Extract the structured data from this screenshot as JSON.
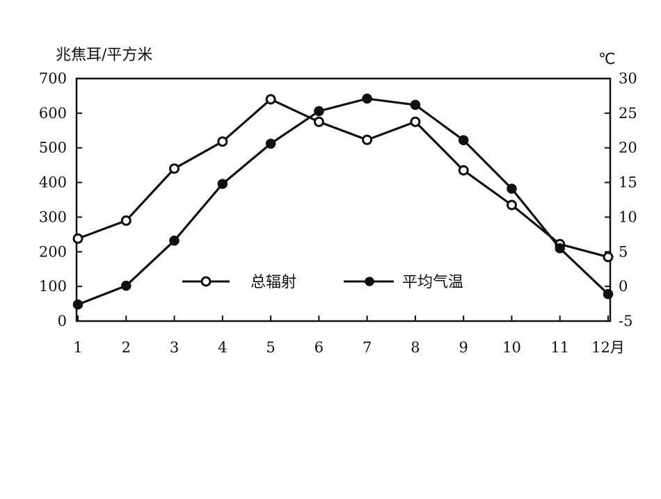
{
  "chart_data": {
    "type": "line",
    "categories": [
      "1",
      "2",
      "3",
      "4",
      "5",
      "6",
      "7",
      "8",
      "9",
      "10",
      "11",
      "12月"
    ],
    "y_left_label": "兆焦耳/平方米",
    "y_right_label": "℃",
    "y_left_ticks": [
      "700",
      "600",
      "500",
      "400",
      "300",
      "200",
      "100",
      "0"
    ],
    "y_right_ticks": [
      "30",
      "25",
      "20",
      "15",
      "10",
      "5",
      "0",
      "-5"
    ],
    "ylim_left": [
      0,
      700
    ],
    "ylim_right": [
      -5,
      30
    ],
    "grid": false,
    "legend_position": "bottom-center inside plot",
    "series": [
      {
        "name": "总辐射",
        "axis": "left",
        "marker": "open-circle",
        "values": [
          238,
          290,
          440,
          518,
          640,
          575,
          523,
          575,
          435,
          335,
          222,
          185
        ]
      },
      {
        "name": "平均气温",
        "axis": "right",
        "marker": "filled-circle",
        "values": [
          -2.6,
          0.1,
          6.6,
          14.8,
          20.6,
          25.3,
          27.1,
          26.2,
          21.1,
          14.1,
          5.5,
          -1.1
        ]
      }
    ]
  }
}
